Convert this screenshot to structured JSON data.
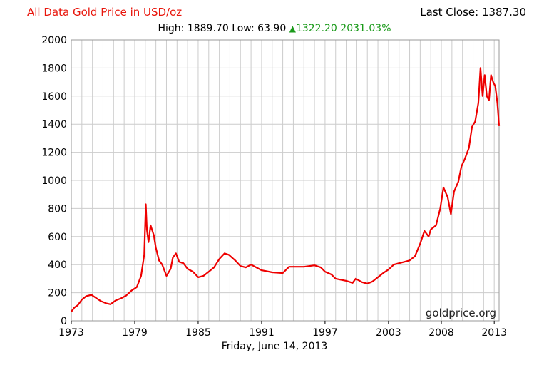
{
  "header": {
    "title": "All Data Gold Price in USD/oz",
    "last_close": "Last Close: 1387.30",
    "high": "High: 1889.70",
    "low": "Low: 63.90",
    "change": "1322.20",
    "change_pct": "2031.03%"
  },
  "footer": {
    "date": "Friday, June 14, 2013"
  },
  "watermark": "goldprice.org",
  "colors": {
    "line": "#ee0000",
    "title": "#e8160c",
    "up": "#1a9a1a",
    "grid": "#cccccc"
  },
  "icons": {
    "change_direction": "up-triangle-icon"
  },
  "chart_data": {
    "type": "line",
    "title": "All Data Gold Price in USD/oz",
    "xlabel": "",
    "ylabel": "",
    "xlim": [
      1973,
      2013.46
    ],
    "ylim": [
      0,
      2000
    ],
    "grid": true,
    "x_ticks": [
      1973,
      1979,
      1985,
      1991,
      1997,
      2003,
      2008,
      2013
    ],
    "y_ticks": [
      0,
      200,
      400,
      600,
      800,
      1000,
      1200,
      1400,
      1600,
      1800,
      2000
    ],
    "series": [
      {
        "x": [
          1973,
          1973.3,
          1973.6,
          1974,
          1974.4,
          1974.9,
          1975.3,
          1975.8,
          1976.3,
          1976.7,
          1977.2,
          1977.7,
          1978.2,
          1978.7,
          1979.2,
          1979.6,
          1979.9,
          1980.05,
          1980.15,
          1980.3,
          1980.5,
          1980.8,
          1981.0,
          1981.3,
          1981.6,
          1982.0,
          1982.4,
          1982.6,
          1982.9,
          1983.2,
          1983.6,
          1984.0,
          1984.5,
          1985.0,
          1985.5,
          1986.0,
          1986.5,
          1987.0,
          1987.5,
          1987.9,
          1988.5,
          1989.0,
          1989.5,
          1990.0,
          1990.5,
          1991.0,
          1992.0,
          1993.0,
          1993.6,
          1994.0,
          1995.0,
          1996.0,
          1996.6,
          1997.0,
          1997.6,
          1998.0,
          1999.0,
          1999.6,
          1999.9,
          2000.5,
          2001.0,
          2001.5,
          2002.0,
          2002.5,
          2003.0,
          2003.5,
          2004.0,
          2004.5,
          2005.0,
          2005.5,
          2006.0,
          2006.4,
          2006.8,
          2007.0,
          2007.5,
          2007.9,
          2008.2,
          2008.6,
          2008.9,
          2009.2,
          2009.6,
          2009.9,
          2010.2,
          2010.6,
          2010.9,
          2011.2,
          2011.5,
          2011.7,
          2011.9,
          2012.1,
          2012.3,
          2012.5,
          2012.7,
          2012.9,
          2013.1,
          2013.3,
          2013.46
        ],
        "y": [
          65,
          95,
          110,
          150,
          175,
          185,
          165,
          140,
          125,
          118,
          145,
          160,
          180,
          215,
          240,
          320,
          470,
          830,
          650,
          560,
          680,
          610,
          520,
          430,
          400,
          320,
          370,
          450,
          480,
          420,
          410,
          370,
          350,
          310,
          320,
          350,
          380,
          440,
          480,
          470,
          430,
          390,
          380,
          400,
          380,
          360,
          345,
          340,
          385,
          385,
          385,
          395,
          380,
          350,
          330,
          300,
          285,
          270,
          300,
          275,
          265,
          280,
          310,
          340,
          365,
          400,
          410,
          420,
          430,
          460,
          550,
          640,
          600,
          650,
          680,
          800,
          950,
          880,
          760,
          920,
          990,
          1100,
          1150,
          1230,
          1380,
          1420,
          1550,
          1800,
          1600,
          1750,
          1600,
          1570,
          1750,
          1700,
          1670,
          1550,
          1387
        ]
      }
    ]
  }
}
